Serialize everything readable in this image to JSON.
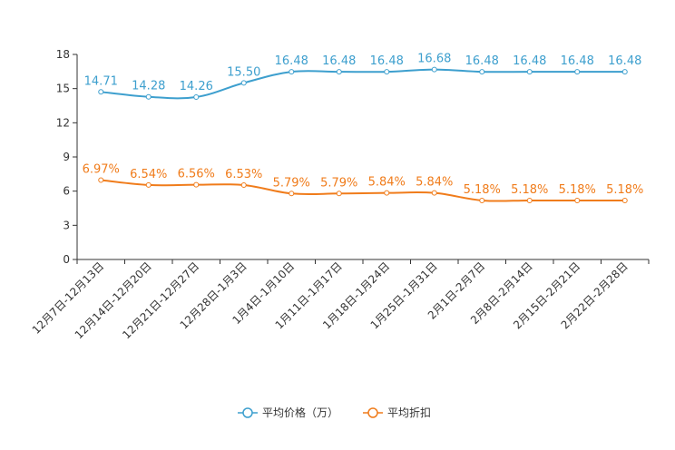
{
  "chart_data": {
    "type": "line",
    "title": "",
    "xlabel": "",
    "ylabel": "",
    "ylim": [
      0,
      18
    ],
    "yticks": [
      0,
      3,
      6,
      9,
      12,
      15,
      18
    ],
    "grid": false,
    "legend_position": "bottom-center",
    "categories": [
      "12月7日-12月13日",
      "12月14日-12月20日",
      "12月21日-12月27日",
      "12月28日-1月3日",
      "1月4日-1月10日",
      "1月11日-1月17日",
      "1月18日-1月24日",
      "1月25日-1月31日",
      "2月1日-2月7日",
      "2月8日-2月14日",
      "2月15日-2月21日",
      "2月22日-2月28日"
    ],
    "series": [
      {
        "name": "平均价格（万）",
        "color": "#3d9fce",
        "values": [
          14.71,
          14.28,
          14.26,
          15.5,
          16.48,
          16.48,
          16.48,
          16.68,
          16.48,
          16.48,
          16.48,
          16.48
        ],
        "labels": [
          "14.71",
          "14.28",
          "14.26",
          "15.50",
          "16.48",
          "16.48",
          "16.48",
          "16.68",
          "16.48",
          "16.48",
          "16.48",
          "16.48"
        ]
      },
      {
        "name": "平均折扣",
        "color": "#f07c1b",
        "values": [
          6.97,
          6.54,
          6.56,
          6.53,
          5.79,
          5.79,
          5.84,
          5.84,
          5.18,
          5.18,
          5.18,
          5.18
        ],
        "labels": [
          "6.97%",
          "6.54%",
          "6.56%",
          "6.53%",
          "5.79%",
          "5.79%",
          "5.84%",
          "5.84%",
          "5.18%",
          "5.18%",
          "5.18%",
          "5.18%"
        ]
      }
    ]
  }
}
